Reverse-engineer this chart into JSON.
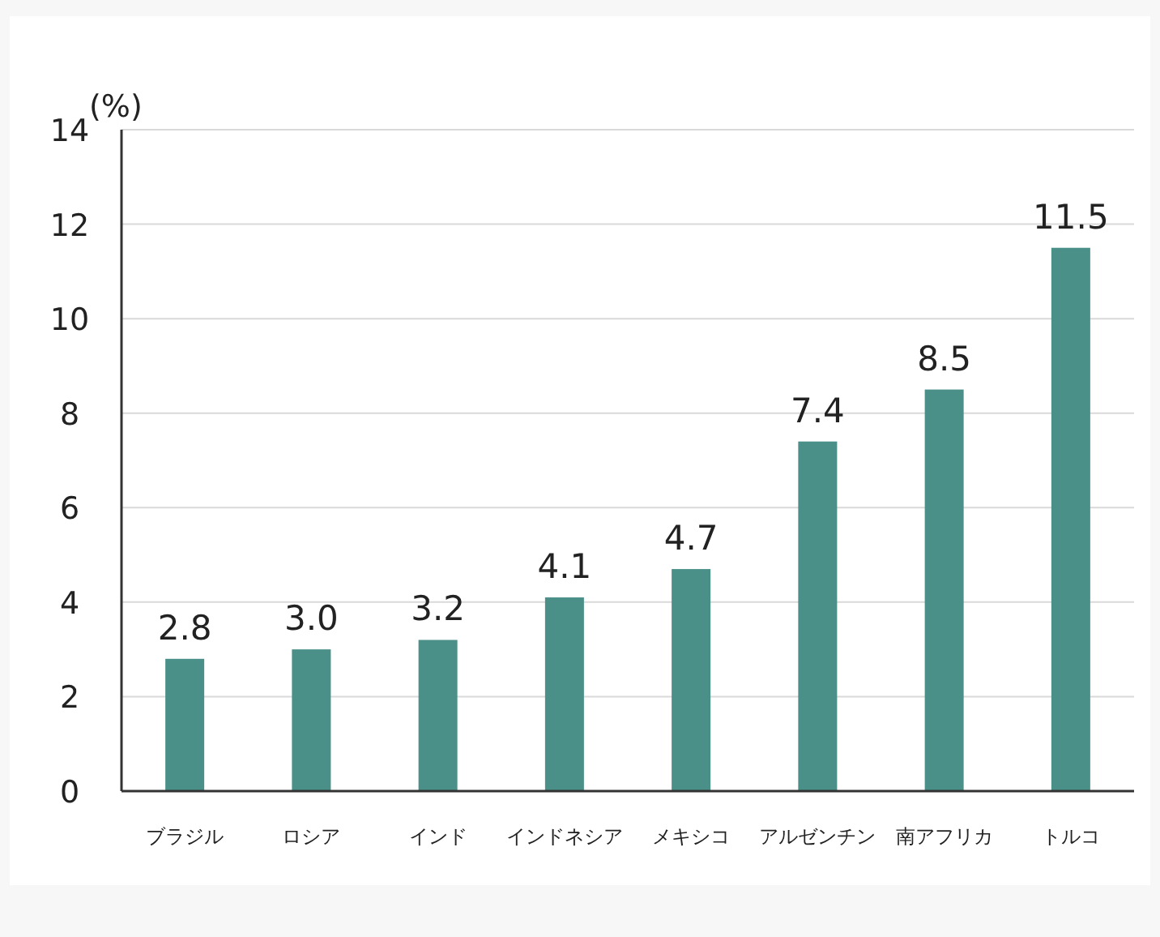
{
  "chart_data": {
    "type": "bar",
    "ylabel": "(%)",
    "categories": [
      "ブラジル",
      "ロシア",
      "インド",
      "インドネシア",
      "メキシコ",
      "アルゼンチン",
      "南アフリカ",
      "トルコ"
    ],
    "values": [
      2.8,
      3.0,
      3.2,
      4.1,
      4.7,
      7.4,
      8.5,
      11.5
    ],
    "value_labels": [
      "2.8",
      "3.0",
      "3.2",
      "4.1",
      "4.7",
      "7.4",
      "8.5",
      "11.5"
    ],
    "color": "#4a9089",
    "ylim": [
      0,
      14
    ],
    "yticks": [
      0,
      2,
      4,
      6,
      8,
      10,
      12,
      14
    ],
    "grid": "y"
  }
}
